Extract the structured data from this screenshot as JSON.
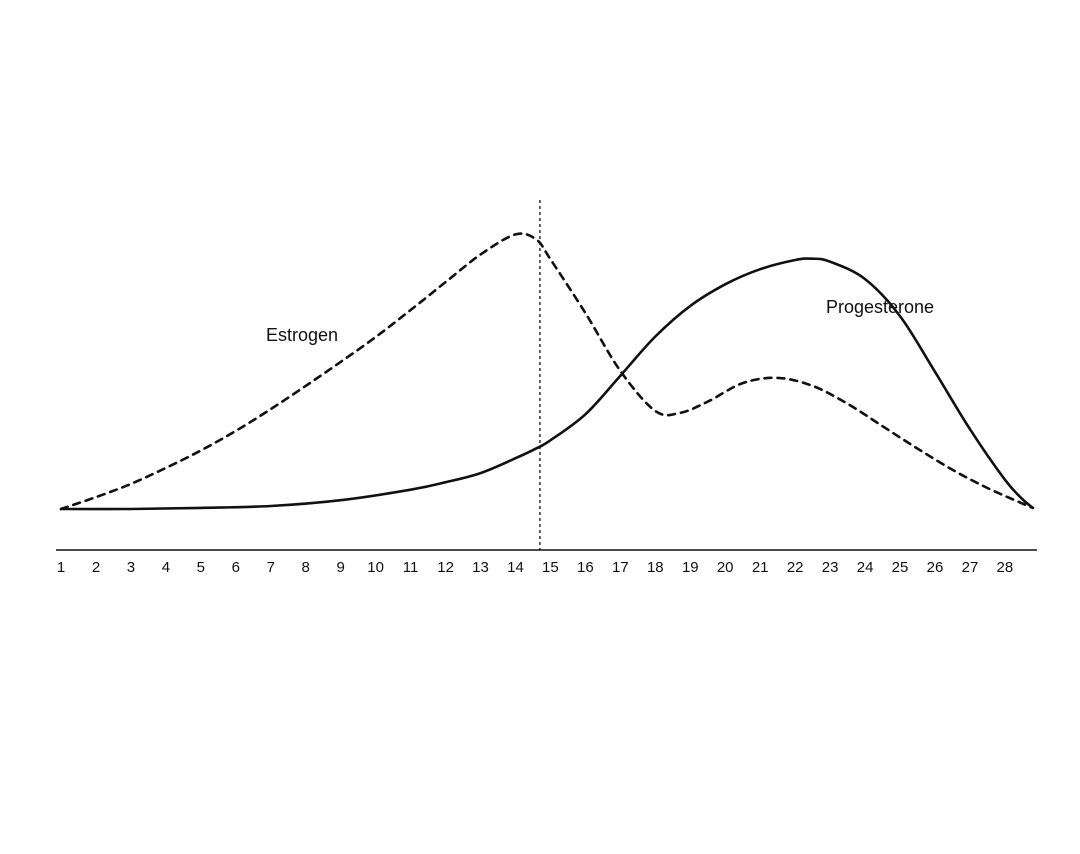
{
  "chart_data": {
    "type": "line",
    "x": [
      1,
      2,
      3,
      4,
      5,
      6,
      7,
      8,
      9,
      10,
      11,
      12,
      13,
      14,
      15,
      16,
      17,
      18,
      19,
      20,
      21,
      22,
      23,
      24,
      25,
      26,
      27,
      28
    ],
    "xlim": [
      1,
      28.8
    ],
    "ylim": [
      0,
      100
    ],
    "series": [
      {
        "name": "Estrogen",
        "style": "dashed",
        "color": "#111111",
        "points": [
          [
            1,
            0
          ],
          [
            2,
            4.3
          ],
          [
            3,
            9.1
          ],
          [
            4,
            14.9
          ],
          [
            5,
            21.2
          ],
          [
            6,
            28.3
          ],
          [
            7,
            36.2
          ],
          [
            8,
            44.6
          ],
          [
            9,
            53.3
          ],
          [
            10,
            62.3
          ],
          [
            11,
            72.1
          ],
          [
            12,
            82.2
          ],
          [
            13,
            92.2
          ],
          [
            14,
            99.5
          ],
          [
            14.6,
            97.6
          ],
          [
            15,
            90.5
          ],
          [
            16,
            71.0
          ],
          [
            17,
            50.0
          ],
          [
            18,
            35.5
          ],
          [
            18.7,
            34.8
          ],
          [
            19.5,
            38.9
          ],
          [
            20.5,
            45.6
          ],
          [
            21.5,
            47.5
          ],
          [
            22.5,
            44.6
          ],
          [
            23.5,
            38.1
          ],
          [
            24.5,
            30.0
          ],
          [
            25.5,
            21.9
          ],
          [
            26.5,
            14.2
          ],
          [
            27.5,
            7.6
          ],
          [
            28.5,
            2.0
          ],
          [
            28.8,
            0.4
          ]
        ]
      },
      {
        "name": "Progesterone",
        "style": "solid",
        "color": "#111111",
        "points": [
          [
            1,
            0
          ],
          [
            3,
            0
          ],
          [
            5,
            0.4
          ],
          [
            7,
            1.1
          ],
          [
            9,
            3.2
          ],
          [
            11,
            7.0
          ],
          [
            12,
            9.7
          ],
          [
            13,
            13.0
          ],
          [
            14,
            18.4
          ],
          [
            14.6,
            22.0
          ],
          [
            15,
            24.9
          ],
          [
            16,
            34.3
          ],
          [
            17,
            48.3
          ],
          [
            18,
            62.5
          ],
          [
            19,
            73.6
          ],
          [
            20,
            81.4
          ],
          [
            21,
            86.9
          ],
          [
            22,
            90.2
          ],
          [
            22.5,
            90.7
          ],
          [
            23,
            89.6
          ],
          [
            24,
            83.3
          ],
          [
            25,
            69.9
          ],
          [
            26,
            49.7
          ],
          [
            27,
            28.9
          ],
          [
            28,
            10.6
          ],
          [
            28.5,
            3.6
          ],
          [
            28.8,
            0.4
          ]
        ]
      }
    ],
    "labels": {
      "estrogen": "Estrogen",
      "progesterone": "Progesterone"
    },
    "ovulation_marker_x": 14.7,
    "x_tick_labels": [
      "1",
      "2",
      "3",
      "4",
      "5",
      "6",
      "7",
      "8",
      "9",
      "10",
      "11",
      "12",
      "13",
      "14",
      "15",
      "16",
      "17",
      "18",
      "19",
      "20",
      "21",
      "22",
      "23",
      "24",
      "25",
      "26",
      "27",
      "28"
    ],
    "grid": false,
    "legend": "none"
  }
}
